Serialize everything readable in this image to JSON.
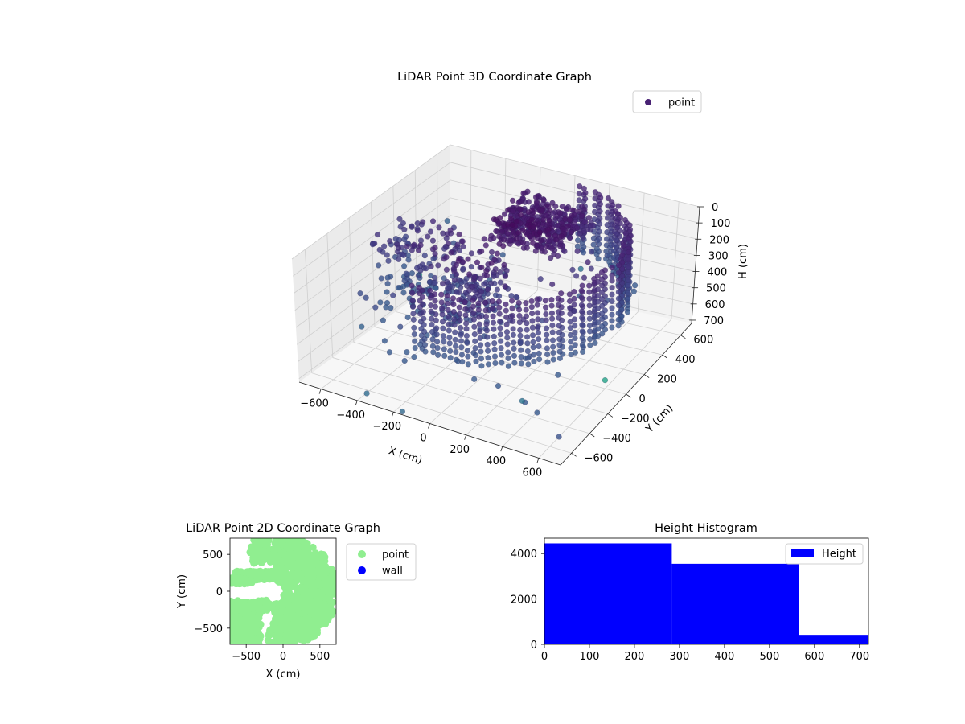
{
  "chart_data": [
    {
      "type": "scatter",
      "projection": "3d",
      "title": "LiDAR Point 3D Coordinate Graph",
      "xlabel": "X (cm)",
      "ylabel": "Y (cm)",
      "zlabel": "H (cm)",
      "xlim": [
        -720,
        720
      ],
      "ylim": [
        -720,
        720
      ],
      "zlim": [
        720,
        0
      ],
      "xticks": [
        -600,
        -400,
        -200,
        0,
        200,
        400,
        600
      ],
      "yticks": [
        -600,
        -400,
        -200,
        0,
        200,
        400,
        600
      ],
      "zticks": [
        0,
        100,
        200,
        300,
        400,
        500,
        600,
        700
      ],
      "legend": {
        "location": "top-right",
        "entries": [
          {
            "label": "point",
            "color": "#482173"
          }
        ]
      },
      "grid": true,
      "series": [
        {
          "name": "point",
          "colormap": "viridis",
          "structure": {
            "ring": {
              "radius": 630,
              "theta_start": -1.75,
              "theta_end": 1.45,
              "theta_steps": 64,
              "h_min": 0,
              "h_max": 390,
              "h_step": 40
            },
            "inner_blob": {
              "x_range": [
                -150,
                250
              ],
              "y_range": [
                150,
                500
              ],
              "h_range": [
                0,
                150
              ]
            },
            "corridor": {
              "x_range": [
                -650,
                0
              ],
              "y_range": [
                -150,
                150
              ],
              "h_range": [
                100,
                500
              ]
            }
          },
          "outliers": [
            {
              "x": -700,
              "y": 660,
              "h": 400
            },
            {
              "x": -520,
              "y": 430,
              "h": 380
            },
            {
              "x": -690,
              "y": 380,
              "h": 580
            },
            {
              "x": 680,
              "y": -150,
              "h": 560
            },
            {
              "x": 480,
              "y": -640,
              "h": 470
            },
            {
              "x": 120,
              "y": 600,
              "h": 460
            },
            {
              "x": -380,
              "y": -660,
              "h": 700
            },
            {
              "x": -150,
              "y": -720,
              "h": 700
            },
            {
              "x": -560,
              "y": -380,
              "h": 500
            },
            {
              "x": 600,
              "y": -500,
              "h": 720
            }
          ]
        }
      ]
    },
    {
      "type": "scatter",
      "title": "LiDAR Point 2D Coordinate Graph",
      "xlabel": "X (cm)",
      "ylabel": "Y (cm)",
      "xlim": [
        -720,
        720
      ],
      "ylim": [
        -720,
        720
      ],
      "xticks": [
        -500,
        0,
        500
      ],
      "yticks": [
        -500,
        0,
        500
      ],
      "legend": {
        "location": "outside-right",
        "entries": [
          {
            "label": "point",
            "color": "#90ee90"
          },
          {
            "label": "wall",
            "color": "#0000ff"
          }
        ]
      }
    },
    {
      "type": "bar",
      "title": "Height Histogram",
      "bins": [
        {
          "range": [
            0,
            283
          ],
          "count": 4450
        },
        {
          "range": [
            283,
            566
          ],
          "count": 3550
        },
        {
          "range": [
            566,
            720
          ],
          "count": 420
        }
      ],
      "xlim": [
        0,
        720
      ],
      "ylim": [
        0,
        4680
      ],
      "xticks": [
        0,
        100,
        200,
        300,
        400,
        500,
        600,
        700
      ],
      "yticks": [
        0,
        2000,
        4000
      ],
      "color": "#0000ff",
      "legend": {
        "location": "top-right",
        "entries": [
          {
            "label": "Height",
            "color": "#0000ff"
          }
        ]
      }
    }
  ]
}
